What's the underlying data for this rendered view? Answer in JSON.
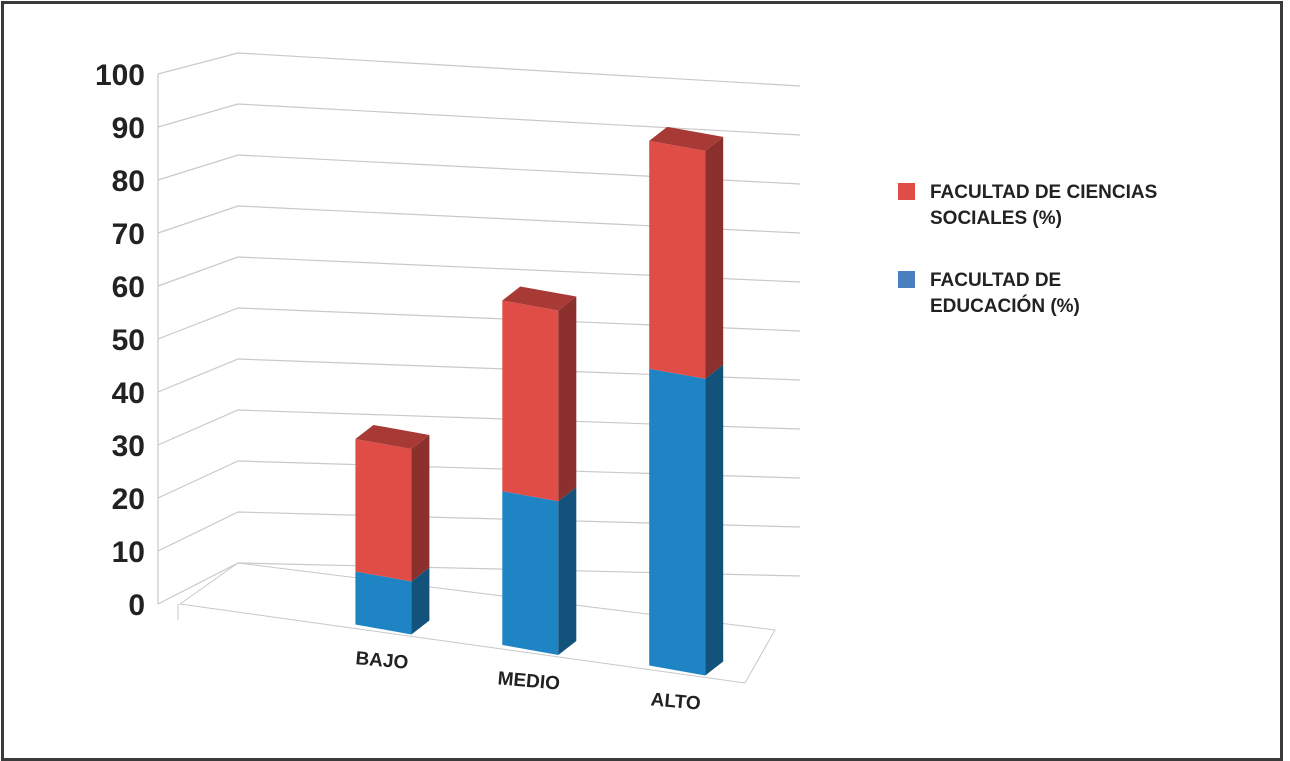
{
  "chart_data": {
    "type": "bar",
    "stacked": true,
    "three_d": true,
    "categories": [
      "BAJO",
      "MEDIO",
      "ALTO"
    ],
    "series": [
      {
        "name": "FACULTAD DE EDUCACIÓN (%)",
        "color": "#1f84c4",
        "values": [
          10,
          29,
          56
        ]
      },
      {
        "name": "FACULTAD DE CIENCIAS SOCIALES (%)",
        "color": "#e04d47",
        "values": [
          25,
          36,
          43
        ]
      }
    ],
    "ylim": [
      0,
      100
    ],
    "yticks": [
      "0",
      "10",
      "20",
      "30",
      "40",
      "50",
      "60",
      "70",
      "80",
      "90",
      "100"
    ],
    "grid": true,
    "legend": {
      "position": "right",
      "items": [
        {
          "label_lines": [
            "FACULTAD DE CIENCIAS",
            "SOCIALES (%)"
          ],
          "color": "#e04d47"
        },
        {
          "label_lines": [
            "FACULTAD DE",
            "EDUCACIÓN (%)"
          ],
          "color": "#4a7fc1"
        }
      ]
    }
  }
}
